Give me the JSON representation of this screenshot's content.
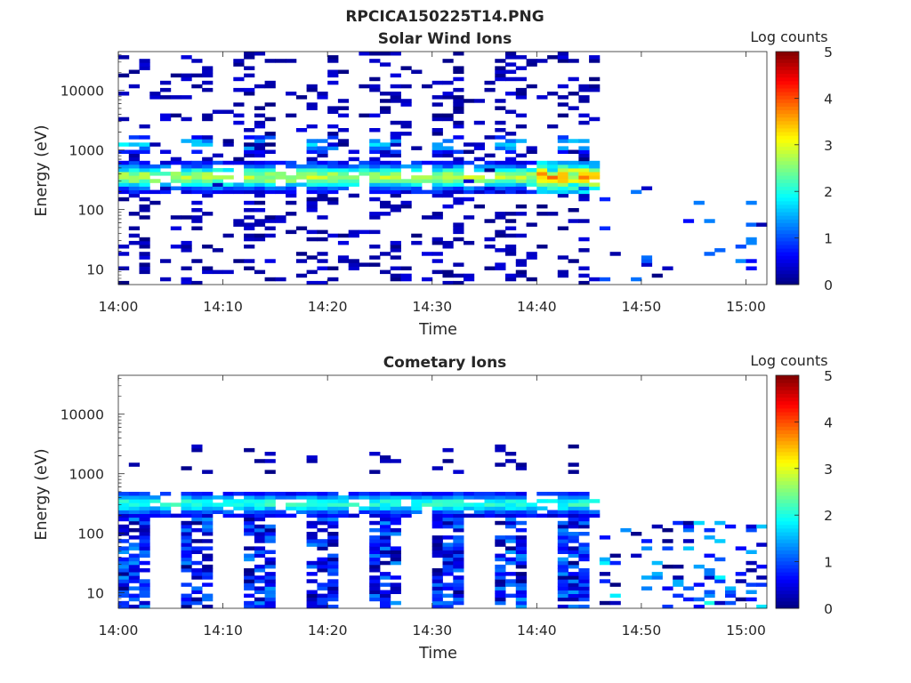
{
  "figure_title": "RPCICA150225T14.PNG",
  "chart_data": [
    {
      "type": "heatmap",
      "title": "Solar Wind Ions",
      "xlabel": "Time",
      "ylabel": "Energy (eV)",
      "x_ticks": [
        "14:00",
        "14:10",
        "14:20",
        "14:30",
        "14:40",
        "14:50",
        "15:00"
      ],
      "y_ticks": [
        "10",
        "100",
        "1000",
        "10000"
      ],
      "y_scale": "log",
      "ylim": [
        5.5,
        45000
      ],
      "xlim": [
        "14:00",
        "15:02"
      ],
      "colorbar": {
        "label": "Log counts",
        "ticks": [
          "0",
          "1",
          "2",
          "3",
          "4",
          "5"
        ],
        "range": [
          0,
          5
        ],
        "colormap": "jet"
      },
      "grid": false,
      "mode": "solar"
    },
    {
      "type": "heatmap",
      "title": "Cometary Ions",
      "xlabel": "Time",
      "ylabel": "Energy (eV)",
      "x_ticks": [
        "14:00",
        "14:10",
        "14:20",
        "14:30",
        "14:40",
        "14:50",
        "15:00"
      ],
      "y_ticks": [
        "10",
        "100",
        "1000",
        "10000"
      ],
      "y_scale": "log",
      "ylim": [
        5.5,
        45000
      ],
      "xlim": [
        "14:00",
        "15:02"
      ],
      "colorbar": {
        "label": "Log counts",
        "ticks": [
          "0",
          "1",
          "2",
          "3",
          "4",
          "5"
        ],
        "range": [
          0,
          5
        ],
        "colormap": "jet"
      },
      "grid": false,
      "mode": "cometary"
    }
  ]
}
